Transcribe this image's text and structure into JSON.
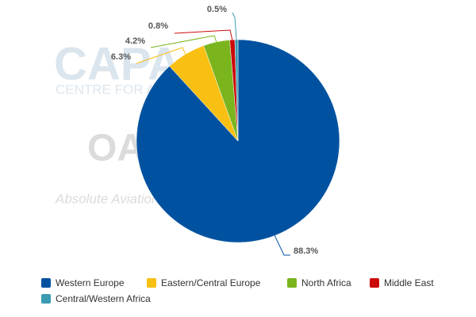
{
  "chart_data": {
    "type": "pie",
    "categories": [
      "Western Europe",
      "Eastern/Central Europe",
      "North Africa",
      "Middle East",
      "Central/Western Africa"
    ],
    "values": [
      88.3,
      6.3,
      4.2,
      0.8,
      0.5
    ],
    "value_labels": [
      "88.3%",
      "6.3%",
      "4.2%",
      "0.8%",
      "0.5%"
    ],
    "colors": [
      "#0052a0",
      "#f8c012",
      "#7ab51d",
      "#cc0a0a",
      "#3b9bb2"
    ],
    "legend": "bottom",
    "watermarks": [
      "CAPA",
      "CENTRE FOR AVIATION",
      "OAG",
      "Absolute Aviation"
    ]
  }
}
